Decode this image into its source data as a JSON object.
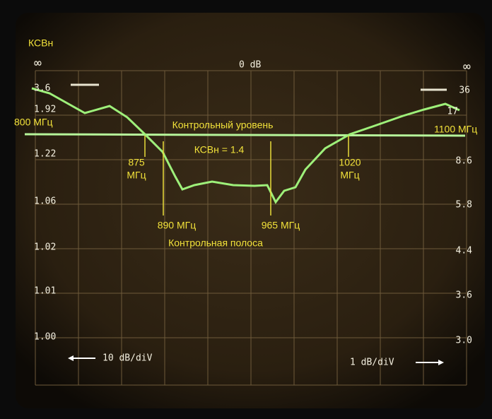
{
  "display": {
    "unit": "КСВн",
    "infinity_left": "∞",
    "zero_db": "0 dB",
    "infinity_right": "∞",
    "left_scale": [
      "3.6",
      "1.92",
      "1.22",
      "1.06",
      "1.02",
      "1.01",
      "1.00"
    ],
    "right_scale": [
      "36",
      "17",
      "8.6",
      "5.8",
      "4.4",
      "3.6",
      "3.0"
    ],
    "footer_left": "10 dB/diV",
    "footer_right": "1 dB/diV"
  },
  "annotations": {
    "start_freq": "800 МГц",
    "end_freq": "1100 МГц",
    "reference_level": "Контрольный уровень",
    "reference_vswr": "КСВн = 1.4",
    "marker_875": [
      "875",
      "МГц"
    ],
    "marker_1020": [
      "1020",
      "МГц"
    ],
    "marker_890": "890 МГц",
    "marker_965": "965 МГц",
    "control_band": "Контрольная полоса"
  }
}
